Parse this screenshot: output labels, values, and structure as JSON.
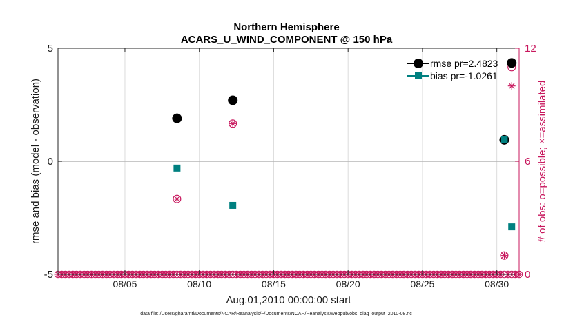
{
  "chart_data": {
    "type": "scatter",
    "title": "Northern Hemisphere",
    "subtitle": "ACARS_U_WIND_COMPONENT @ 150 hPa",
    "xlabel": "Aug.01,2010 00:00:00 start",
    "ylabel": "rmse and bias (model - observation)",
    "ylabel_right": "# of obs: o=possible; ×=assimilated",
    "footer": "data file: /Users/gharamti/Documents/NCAR/Reanalysis/~/Documents/NCAR/Reanalysis/webpub/obs_diag_output_2010-08.nc",
    "xlim": [
      0.5,
      31.5
    ],
    "ylim": [
      -5,
      5
    ],
    "ylim_right": [
      0,
      12
    ],
    "grid": "vertical",
    "x_ticks": [
      5,
      10,
      15,
      20,
      25,
      30
    ],
    "x_tick_labels": [
      "08/05",
      "08/10",
      "08/15",
      "08/20",
      "08/25",
      "08/30"
    ],
    "y_ticks": [
      -5,
      0,
      5
    ],
    "y_tick_labels": [
      "-5",
      "0",
      "5"
    ],
    "y_ticks_right": [
      0,
      6,
      12
    ],
    "y_tick_labels_right": [
      "0",
      "6",
      "12"
    ],
    "zero_line": 0,
    "legend_position": "top-right",
    "series": [
      {
        "name": "rmse pr=2.4823",
        "axis": "left",
        "color": "#000000",
        "marker": "circle",
        "x": [
          8.5,
          12.25,
          30.5,
          31.0
        ],
        "y": [
          1.9,
          2.7,
          0.95,
          4.35
        ]
      },
      {
        "name": "bias pr=-1.0261",
        "axis": "left",
        "color": "#008080",
        "marker": "square",
        "x": [
          8.5,
          12.25,
          30.5,
          31.0
        ],
        "y": [
          -0.3,
          -1.95,
          0.95,
          -2.9
        ]
      },
      {
        "name": "possible",
        "axis": "right",
        "color": "#c8175d",
        "marker": "open-circle",
        "x": [
          8.5,
          12.25,
          30.5,
          31.0
        ],
        "y": [
          4,
          8,
          1,
          11
        ]
      },
      {
        "name": "assimilated",
        "axis": "right",
        "color": "#c8175d",
        "marker": "asterisk",
        "x": [
          8.5,
          12.25,
          30.5,
          31.0
        ],
        "y": [
          4,
          8,
          1,
          10
        ]
      }
    ],
    "baseline_counts": {
      "axis": "right",
      "value": 0,
      "x_start": 0.5,
      "x_end": 31.5,
      "step": 0.25,
      "color": "#c8175d"
    }
  }
}
